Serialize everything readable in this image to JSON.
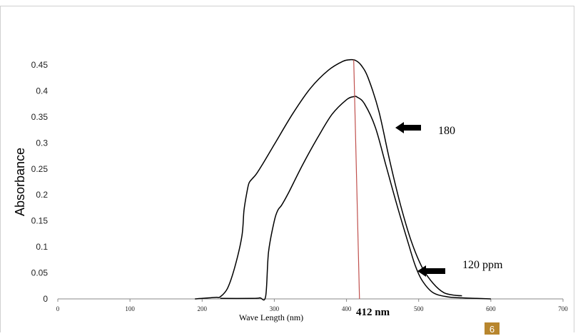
{
  "chart_data": {
    "type": "line",
    "title": "",
    "xlabel": "Wave Length (nm)",
    "ylabel": "Absorbance",
    "xlim": [
      0,
      700
    ],
    "ylim": [
      0,
      0.45
    ],
    "xticks": [
      0,
      100,
      200,
      300,
      400,
      500,
      600,
      700
    ],
    "yticks": [
      0,
      0.05,
      0.1,
      0.15,
      0.2,
      0.25,
      0.3,
      0.35,
      0.4,
      0.45
    ],
    "ytick_labels": [
      "0",
      "0.05",
      "0.1",
      "0.15",
      "0.2",
      "0.25",
      "0.3",
      "0.35",
      "0.4",
      "0.45"
    ],
    "grid": false,
    "legend": "none",
    "series": [
      {
        "name": "180",
        "x": [
          190,
          200,
          210,
          220,
          225,
          235,
          245,
          255,
          258,
          262,
          265,
          270,
          275,
          285,
          300,
          325,
          350,
          375,
          395,
          405,
          412,
          420,
          430,
          445,
          460,
          475,
          490,
          505,
          520,
          535,
          550,
          560
        ],
        "y": [
          0.0,
          0.001,
          0.002,
          0.003,
          0.004,
          0.02,
          0.06,
          0.12,
          0.17,
          0.205,
          0.223,
          0.232,
          0.24,
          0.262,
          0.297,
          0.355,
          0.405,
          0.44,
          0.457,
          0.46,
          0.459,
          0.45,
          0.425,
          0.36,
          0.265,
          0.18,
          0.11,
          0.06,
          0.03,
          0.012,
          0.007,
          0.006
        ]
      },
      {
        "name": "120 ppm",
        "x": [
          225,
          270,
          280,
          288,
          292,
          300,
          305,
          310,
          320,
          340,
          360,
          380,
          400,
          410,
          415,
          425,
          440,
          455,
          470,
          485,
          495,
          505,
          520,
          540,
          560,
          580,
          600
        ],
        "y": [
          0.001,
          0.001,
          0.002,
          0.005,
          0.09,
          0.15,
          0.171,
          0.18,
          0.205,
          0.26,
          0.31,
          0.355,
          0.383,
          0.389,
          0.388,
          0.375,
          0.33,
          0.255,
          0.18,
          0.11,
          0.065,
          0.035,
          0.012,
          0.004,
          0.002,
          0.001,
          0.0
        ]
      }
    ],
    "annotations": [
      {
        "text": "180",
        "arrow_to_series": "180"
      },
      {
        "text": "120 ppm",
        "arrow_to_series": "120 ppm"
      },
      {
        "text": "412 nm",
        "lambda_max_line": {
          "x": [
            410,
            418
          ],
          "y": [
            0.46,
            0.0
          ]
        }
      }
    ]
  },
  "page_badge": "6",
  "colors": {
    "curve": "#000000",
    "lambda_line": "#c0504d",
    "badge": "#b8862e"
  }
}
